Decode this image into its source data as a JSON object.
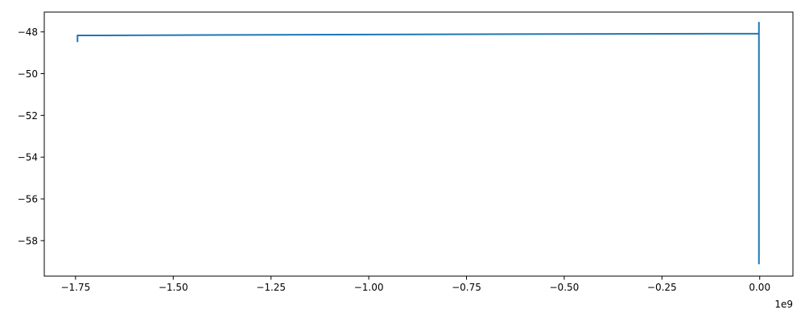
{
  "chart_data": {
    "type": "line",
    "title": "",
    "xlabel": "",
    "ylabel": "",
    "x_offset_label": "1e9",
    "x_scale": 1000000000,
    "xlim": [
      -1.83,
      0.085
    ],
    "ylim": [
      -59.7,
      -47.05
    ],
    "grid": false,
    "legend": "none",
    "x_ticks": [
      {
        "value": -1.75,
        "label": "−1.75"
      },
      {
        "value": -1.5,
        "label": "−1.50"
      },
      {
        "value": -1.25,
        "label": "−1.25"
      },
      {
        "value": -1.0,
        "label": "−1.00"
      },
      {
        "value": -0.75,
        "label": "−0.75"
      },
      {
        "value": -0.5,
        "label": "−0.50"
      },
      {
        "value": -0.25,
        "label": "−0.25"
      },
      {
        "value": 0.0,
        "label": "0.00"
      }
    ],
    "y_ticks": [
      {
        "value": -48,
        "label": "−48"
      },
      {
        "value": -50,
        "label": "−50"
      },
      {
        "value": -52,
        "label": "−52"
      },
      {
        "value": -54,
        "label": "−54"
      },
      {
        "value": -56,
        "label": "−56"
      },
      {
        "value": -58,
        "label": "−58"
      }
    ],
    "series": [
      {
        "color": "#1f77b4",
        "x": [
          -1.745,
          -1.745,
          -1.745,
          -0.9,
          -0.002,
          -0.002,
          -0.002,
          -0.002,
          -0.002
        ],
        "y": [
          -48.45,
          -48.17,
          -48.17,
          -48.12,
          -48.08,
          -47.55,
          -59.1,
          -48.1,
          -48.08
        ]
      }
    ]
  }
}
